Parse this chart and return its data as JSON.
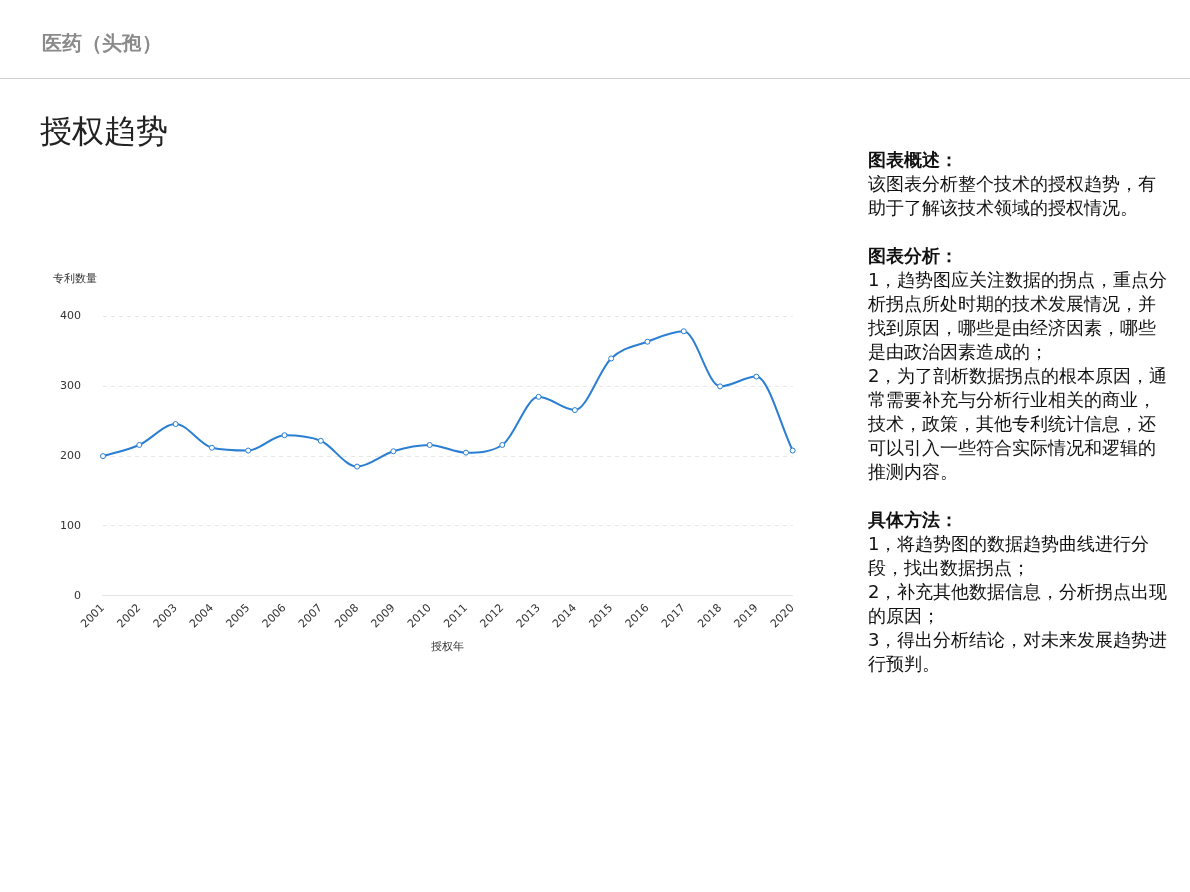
{
  "chart_data": {
    "type": "line",
    "title": "授权趋势",
    "subtitle": "医药（头孢）",
    "xlabel": "授权年",
    "ylabel": "专利数量",
    "categories": [
      "2001",
      "2002",
      "2003",
      "2004",
      "2005",
      "2006",
      "2007",
      "2008",
      "2009",
      "2010",
      "2011",
      "2012",
      "2013",
      "2014",
      "2015",
      "2016",
      "2017",
      "2018",
      "2019",
      "2020"
    ],
    "series": [
      {
        "color": "#2a7fd4",
        "values": [
          200,
          216,
          246,
          212,
          208,
          230,
          222,
          185,
          207,
          216,
          205,
          216,
          285,
          266,
          340,
          364,
          379,
          300,
          314,
          208
        ]
      }
    ],
    "ylim": [
      0,
      400
    ],
    "yticks": [
      0,
      100,
      200,
      300,
      400
    ],
    "grid": "y",
    "legend": false,
    "marker": "circle",
    "line_style": "solid",
    "annotations": [
      "图表概述：",
      "该图表分析整个技术的授权趋势，有助于了解该技术领域的授权情况。",
      "图表分析：",
      "1，趋势图应关注数据的拐点，重点分析拐点所处时期的技术发展情况，并找到原因，哪些是由经济因素，哪些是由政治因素造成的；",
      "2，为了剖析数据拐点的根本原因，通常需要补充与分析行业相关的商业，技术，政策，其他专利统计信息，还可以引入一些符合实际情况和逻辑的推测内容。",
      "具体方法：",
      "1，将趋势图的数据趋势曲线进行分段，找出数据拐点；",
      "2，补充其他数据信息，分析拐点出现的原因；",
      "3，得出分析结论，对未来发展趋势进行预判。"
    ]
  }
}
